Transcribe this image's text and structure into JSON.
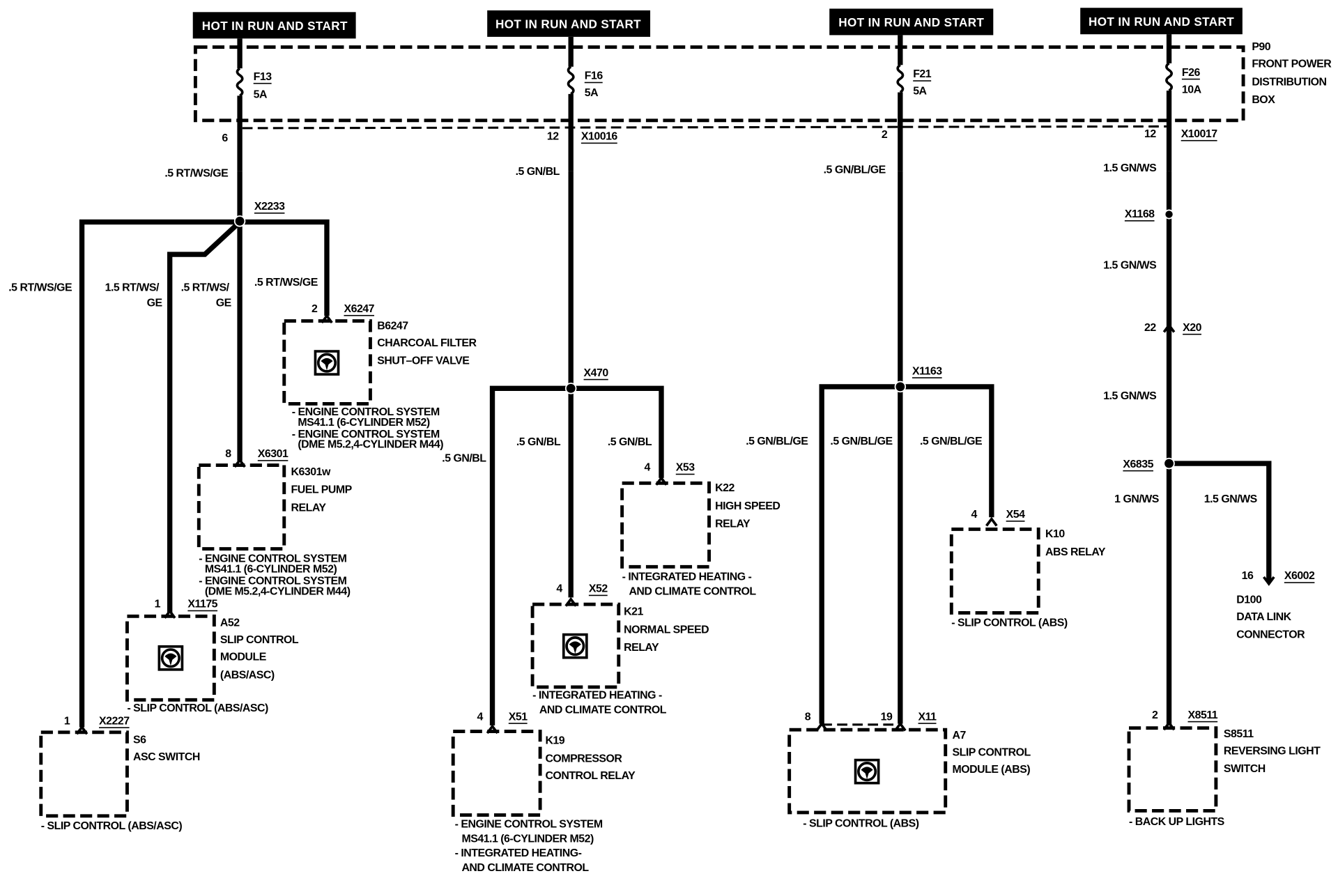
{
  "power_headers": [
    "HOT IN RUN AND START",
    "HOT IN RUN AND START",
    "HOT IN RUN AND START",
    "HOT IN RUN AND START"
  ],
  "distribution_box": {
    "id": "P90",
    "lines": [
      "FRONT POWER",
      "DISTRIBUTION",
      "BOX"
    ]
  },
  "c1": {
    "fuse": "F13",
    "rating": "5A",
    "pin": "6",
    "wire": ".5 RT/WS/GE",
    "splice": "X2233",
    "branch_wires": [
      ".5 RT/WS/GE",
      "1.5 RT/WS/",
      "GE",
      ".5 RT/WS/",
      "GE",
      ".5 RT/WS/GE"
    ],
    "b6247": {
      "pin": "2",
      "connector": "X6247",
      "id": "B6247",
      "lines": [
        "CHARCOAL FILTER",
        "SHUT–OFF VALVE"
      ],
      "notes": [
        "- ENGINE CONTROL SYSTEM",
        "MS41.1 (6-CYLINDER M52)",
        "- ENGINE CONTROL SYSTEM",
        "(DME M5.2,4-CYLINDER M44)"
      ]
    },
    "k6301": {
      "pin": "8",
      "connector": "X6301",
      "id": "K6301w",
      "lines": [
        "FUEL PUMP",
        "RELAY"
      ],
      "notes": [
        "- ENGINE CONTROL SYSTEM",
        "MS41.1 (6-CYLINDER M52)",
        "- ENGINE CONTROL SYSTEM",
        "(DME M5.2,4-CYLINDER M44)"
      ]
    },
    "a52": {
      "pin": "1",
      "connector": "X1175",
      "id": "A52",
      "lines": [
        "SLIP CONTROL",
        "MODULE",
        "(ABS/ASC)"
      ],
      "notes": [
        "- SLIP CONTROL (ABS/ASC)"
      ]
    },
    "s6": {
      "pin": "1",
      "connector": "X2227",
      "id": "S6",
      "lines": [
        "ASC SWITCH"
      ],
      "notes": [
        "- SLIP CONTROL (ABS/ASC)"
      ]
    }
  },
  "c2": {
    "fuse": "F16",
    "rating": "5A",
    "pin": "12",
    "connector": "X10016",
    "wire": ".5 GN/BL",
    "splice": "X470",
    "branch_wires": [
      ".5 GN/BL",
      ".5 GN/BL",
      ".5 GN/BL"
    ],
    "k22": {
      "pin": "4",
      "connector": "X53",
      "id": "K22",
      "lines": [
        "HIGH SPEED",
        "RELAY"
      ],
      "notes": [
        "- INTEGRATED HEATING -",
        "AND CLIMATE CONTROL"
      ]
    },
    "k21": {
      "pin": "4",
      "connector": "X52",
      "id": "K21",
      "lines": [
        "NORMAL SPEED",
        "RELAY"
      ],
      "notes": [
        "- INTEGRATED HEATING -",
        "AND CLIMATE CONTROL"
      ]
    },
    "k19": {
      "pin": "4",
      "connector": "X51",
      "id": "K19",
      "lines": [
        "COMPRESSOR",
        "CONTROL RELAY"
      ],
      "notes": [
        "- ENGINE CONTROL SYSTEM",
        "MS41.1 (6-CYLINDER M52)",
        "- INTEGRATED HEATING-",
        "AND CLIMATE CONTROL"
      ]
    }
  },
  "c3": {
    "fuse": "F21",
    "rating": "5A",
    "pin": "2",
    "wire": ".5 GN/BL/GE",
    "splice": "X1163",
    "branch_wires": [
      ".5 GN/BL/GE",
      ".5 GN/BL/GE",
      ".5 GN/BL/GE"
    ],
    "a7": {
      "pin_a": "8",
      "pin_b": "19",
      "connector": "X11",
      "id": "A7",
      "lines": [
        "SLIP CONTROL",
        "MODULE (ABS)"
      ],
      "notes": [
        "- SLIP CONTROL (ABS)"
      ]
    },
    "k10": {
      "pin": "4",
      "connector": "X54",
      "id": "K10",
      "lines": [
        "ABS RELAY"
      ],
      "notes": [
        "- SLIP CONTROL (ABS)"
      ]
    }
  },
  "c4": {
    "fuse": "F26",
    "rating": "10A",
    "pin": "12",
    "connector": "X10017",
    "wires": [
      "1.5 GN/WS",
      "1.5 GN/WS",
      "1.5 GN/WS",
      "1 GN/WS",
      "1.5 GN/WS"
    ],
    "splice1": "X1168",
    "inline_pin": "22",
    "inline_connector": "X20",
    "splice2": "X6835",
    "d100": {
      "pin": "16",
      "connector": "X6002",
      "id": "D100",
      "lines": [
        "DATA LINK",
        "CONNECTOR"
      ]
    },
    "s8511": {
      "pin": "2",
      "connector": "X8511",
      "id": "S8511",
      "lines": [
        "REVERSING LIGHT",
        "SWITCH"
      ],
      "notes": [
        "- BACK UP LIGHTS"
      ]
    }
  }
}
